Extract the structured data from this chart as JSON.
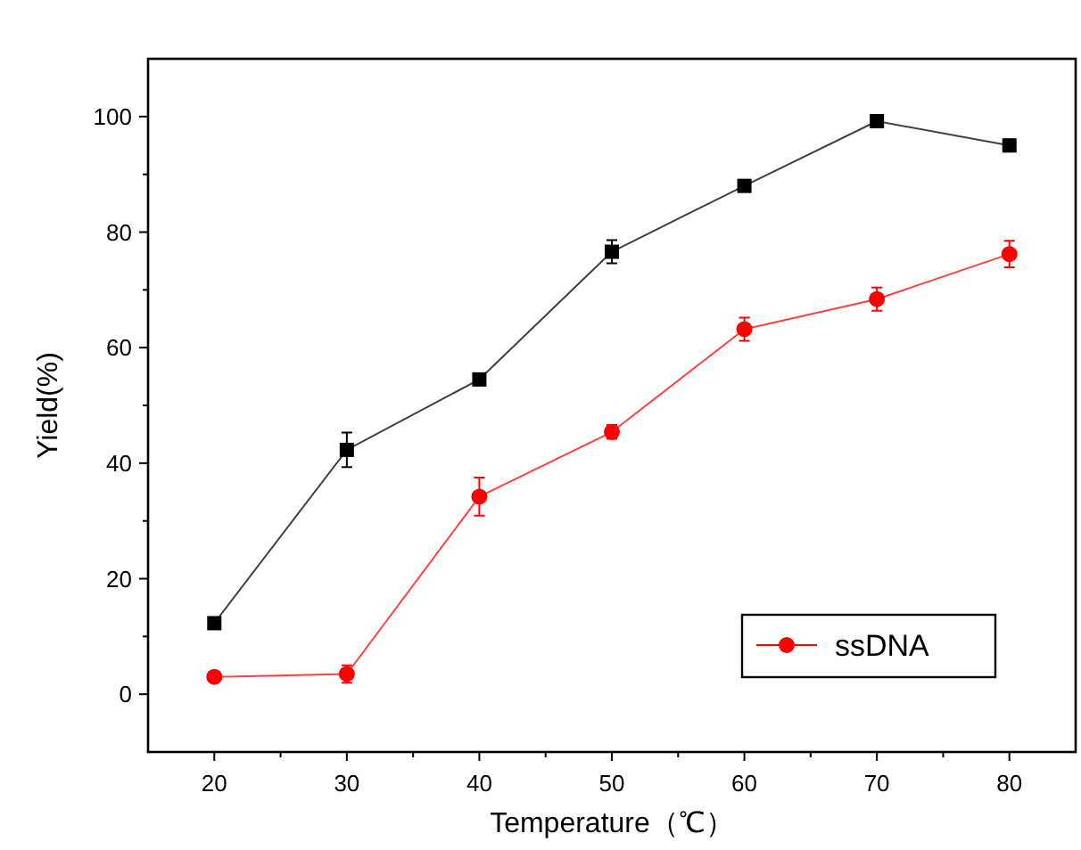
{
  "chart_data": {
    "type": "line",
    "xlabel": "Temperature（℃）",
    "ylabel": "Yield(%)",
    "x": [
      20,
      30,
      40,
      50,
      60,
      70,
      80
    ],
    "series": [
      {
        "color": "#000000",
        "marker": "square",
        "values": [
          12.3,
          42.3,
          54.5,
          76.6,
          88.0,
          99.2,
          95.0
        ],
        "errors": [
          null,
          3,
          1,
          2,
          null,
          null,
          1
        ]
      },
      {
        "name": "ssDNA",
        "color": "#ff0000",
        "marker": "circle",
        "values": [
          3.0,
          3.5,
          34.2,
          45.4,
          63.2,
          68.4,
          76.2
        ],
        "errors": [
          0.5,
          1.5,
          3.3,
          1.2,
          2,
          2,
          2.3
        ]
      }
    ],
    "xlim": [
      15,
      85
    ],
    "xticks": [
      20,
      30,
      40,
      50,
      60,
      70,
      80
    ],
    "ylim": [
      -10,
      110
    ],
    "yticks": [
      0,
      20,
      40,
      60,
      80,
      100
    ],
    "line_style": "solid",
    "grid": false,
    "legend": "bottom right"
  }
}
